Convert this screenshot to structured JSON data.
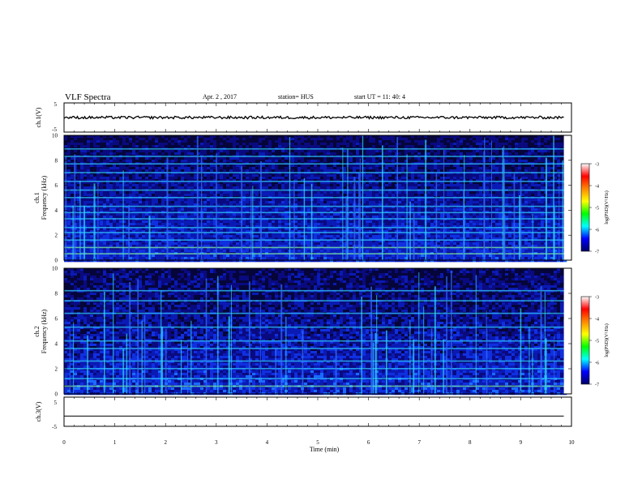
{
  "header": {
    "title": "VLF Spectra",
    "date": "Apr. 2 , 2017",
    "station": "station= HUS",
    "start": "start UT =   11: 40: 4"
  },
  "chart_data": [
    {
      "type": "line",
      "panel": "ch1-waveform",
      "ylabel": "ch.1(V)",
      "ylim": [
        -5,
        5
      ],
      "yticks": [
        "5",
        "-5"
      ],
      "xlim": [
        0,
        10
      ],
      "series": [
        {
          "x": [
            0,
            9.85
          ],
          "y": [
            0,
            0
          ]
        }
      ],
      "trace_color": "#000000"
    },
    {
      "type": "heatmap",
      "panel": "ch1-spectrogram",
      "ylabel": [
        "ch.1",
        "Frequency (kHz)"
      ],
      "ylim": [
        0,
        10
      ],
      "yticks": [
        "0",
        "2",
        "4",
        "6",
        "8",
        "10"
      ],
      "xlim": [
        0,
        10
      ],
      "data_extent": [
        0,
        9.85
      ],
      "colorbar": {
        "label": "log(PSD)(V²/Hz)",
        "range": [
          -7,
          -3
        ],
        "ticks": [
          "-3",
          "-4",
          "-5",
          "-6",
          "-7"
        ]
      },
      "bands_khz": [
        0.5,
        1.0,
        1.6,
        2.2,
        2.6,
        3.3,
        3.8,
        4.3,
        5.0,
        5.6,
        6.3,
        7.0,
        7.7,
        8.3,
        8.9
      ]
    },
    {
      "type": "heatmap",
      "panel": "ch2-spectrogram",
      "ylabel": [
        "ch.2",
        "Frequency (kHz)"
      ],
      "ylim": [
        0,
        10
      ],
      "yticks": [
        "0",
        "2",
        "4",
        "6",
        "8",
        "10"
      ],
      "xlim": [
        0,
        10
      ],
      "data_extent": [
        0,
        9.85
      ],
      "colorbar": {
        "label": "log(PSD)(V²/Hz)",
        "range": [
          -7,
          -3
        ],
        "ticks": [
          "-3",
          "-4",
          "-5",
          "-6",
          "-7"
        ]
      },
      "bands_khz": [
        0.6,
        1.2,
        2.0,
        2.6,
        3.6,
        4.2,
        5.3,
        6.4,
        7.4,
        8.2
      ]
    },
    {
      "type": "line",
      "panel": "ch3-waveform",
      "ylabel": "ch.3(V)",
      "ylim": [
        -5,
        5
      ],
      "yticks": [
        "5",
        "-5"
      ],
      "xlim": [
        0,
        10
      ],
      "series": [
        {
          "x": [
            0,
            9.85
          ],
          "y": [
            -1.5,
            -1.5
          ]
        }
      ],
      "trace_color": "#000000"
    }
  ],
  "xaxis": {
    "label": "Time (min)",
    "ticks": [
      "0",
      "1",
      "2",
      "3",
      "4",
      "5",
      "6",
      "7",
      "8",
      "9",
      "10"
    ]
  },
  "colormap": [
    "#ffffff",
    "#ff0000",
    "#ff8800",
    "#ffff00",
    "#00ff00",
    "#00ffff",
    "#0000ff",
    "#000066"
  ]
}
